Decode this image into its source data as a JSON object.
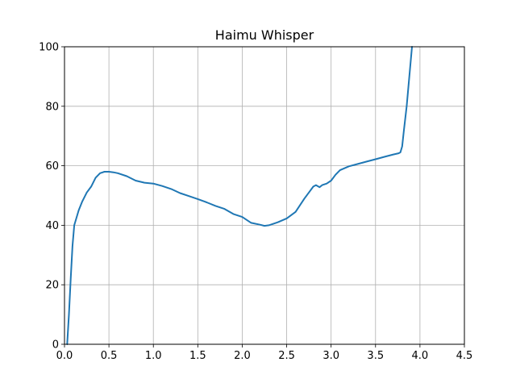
{
  "chart_data": {
    "type": "line",
    "title": "Haimu Whisper",
    "xlabel": "",
    "ylabel": "",
    "xlim": [
      0.0,
      4.5
    ],
    "ylim": [
      0,
      100
    ],
    "x_ticks": [
      "0.0",
      "0.5",
      "1.0",
      "1.5",
      "2.0",
      "2.5",
      "3.0",
      "3.5",
      "4.0",
      "4.5"
    ],
    "y_ticks": [
      "0",
      "20",
      "40",
      "60",
      "80",
      "100"
    ],
    "grid": true,
    "series": [
      {
        "color": "#1f77b4",
        "x": [
          0.03,
          0.05,
          0.07,
          0.09,
          0.11,
          0.13,
          0.16,
          0.2,
          0.25,
          0.3,
          0.35,
          0.4,
          0.45,
          0.5,
          0.55,
          0.6,
          0.7,
          0.8,
          0.9,
          1.0,
          1.1,
          1.2,
          1.3,
          1.4,
          1.5,
          1.6,
          1.7,
          1.8,
          1.9,
          2.0,
          2.1,
          2.2,
          2.25,
          2.3,
          2.4,
          2.5,
          2.6,
          2.7,
          2.75,
          2.8,
          2.83,
          2.87,
          2.9,
          2.95,
          3.0,
          3.05,
          3.1,
          3.2,
          3.3,
          3.4,
          3.5,
          3.6,
          3.7,
          3.76,
          3.78,
          3.8,
          3.82,
          3.85,
          3.88,
          3.91
        ],
        "y": [
          0,
          10,
          22,
          33,
          40,
          42,
          45,
          48,
          51,
          53,
          56,
          57.5,
          58,
          58,
          57.8,
          57.5,
          56.5,
          55,
          54.3,
          54,
          53.2,
          52.2,
          50.8,
          49.8,
          48.8,
          47.7,
          46.5,
          45.5,
          43.8,
          42.8,
          40.8,
          40.2,
          39.8,
          40,
          41,
          42.3,
          44.5,
          49,
          51,
          53,
          53.5,
          52.8,
          53.5,
          54,
          55,
          57,
          58.5,
          59.8,
          60.6,
          61.4,
          62.2,
          63,
          63.8,
          64.2,
          64.5,
          66.5,
          72,
          80,
          90,
          100
        ]
      }
    ]
  }
}
